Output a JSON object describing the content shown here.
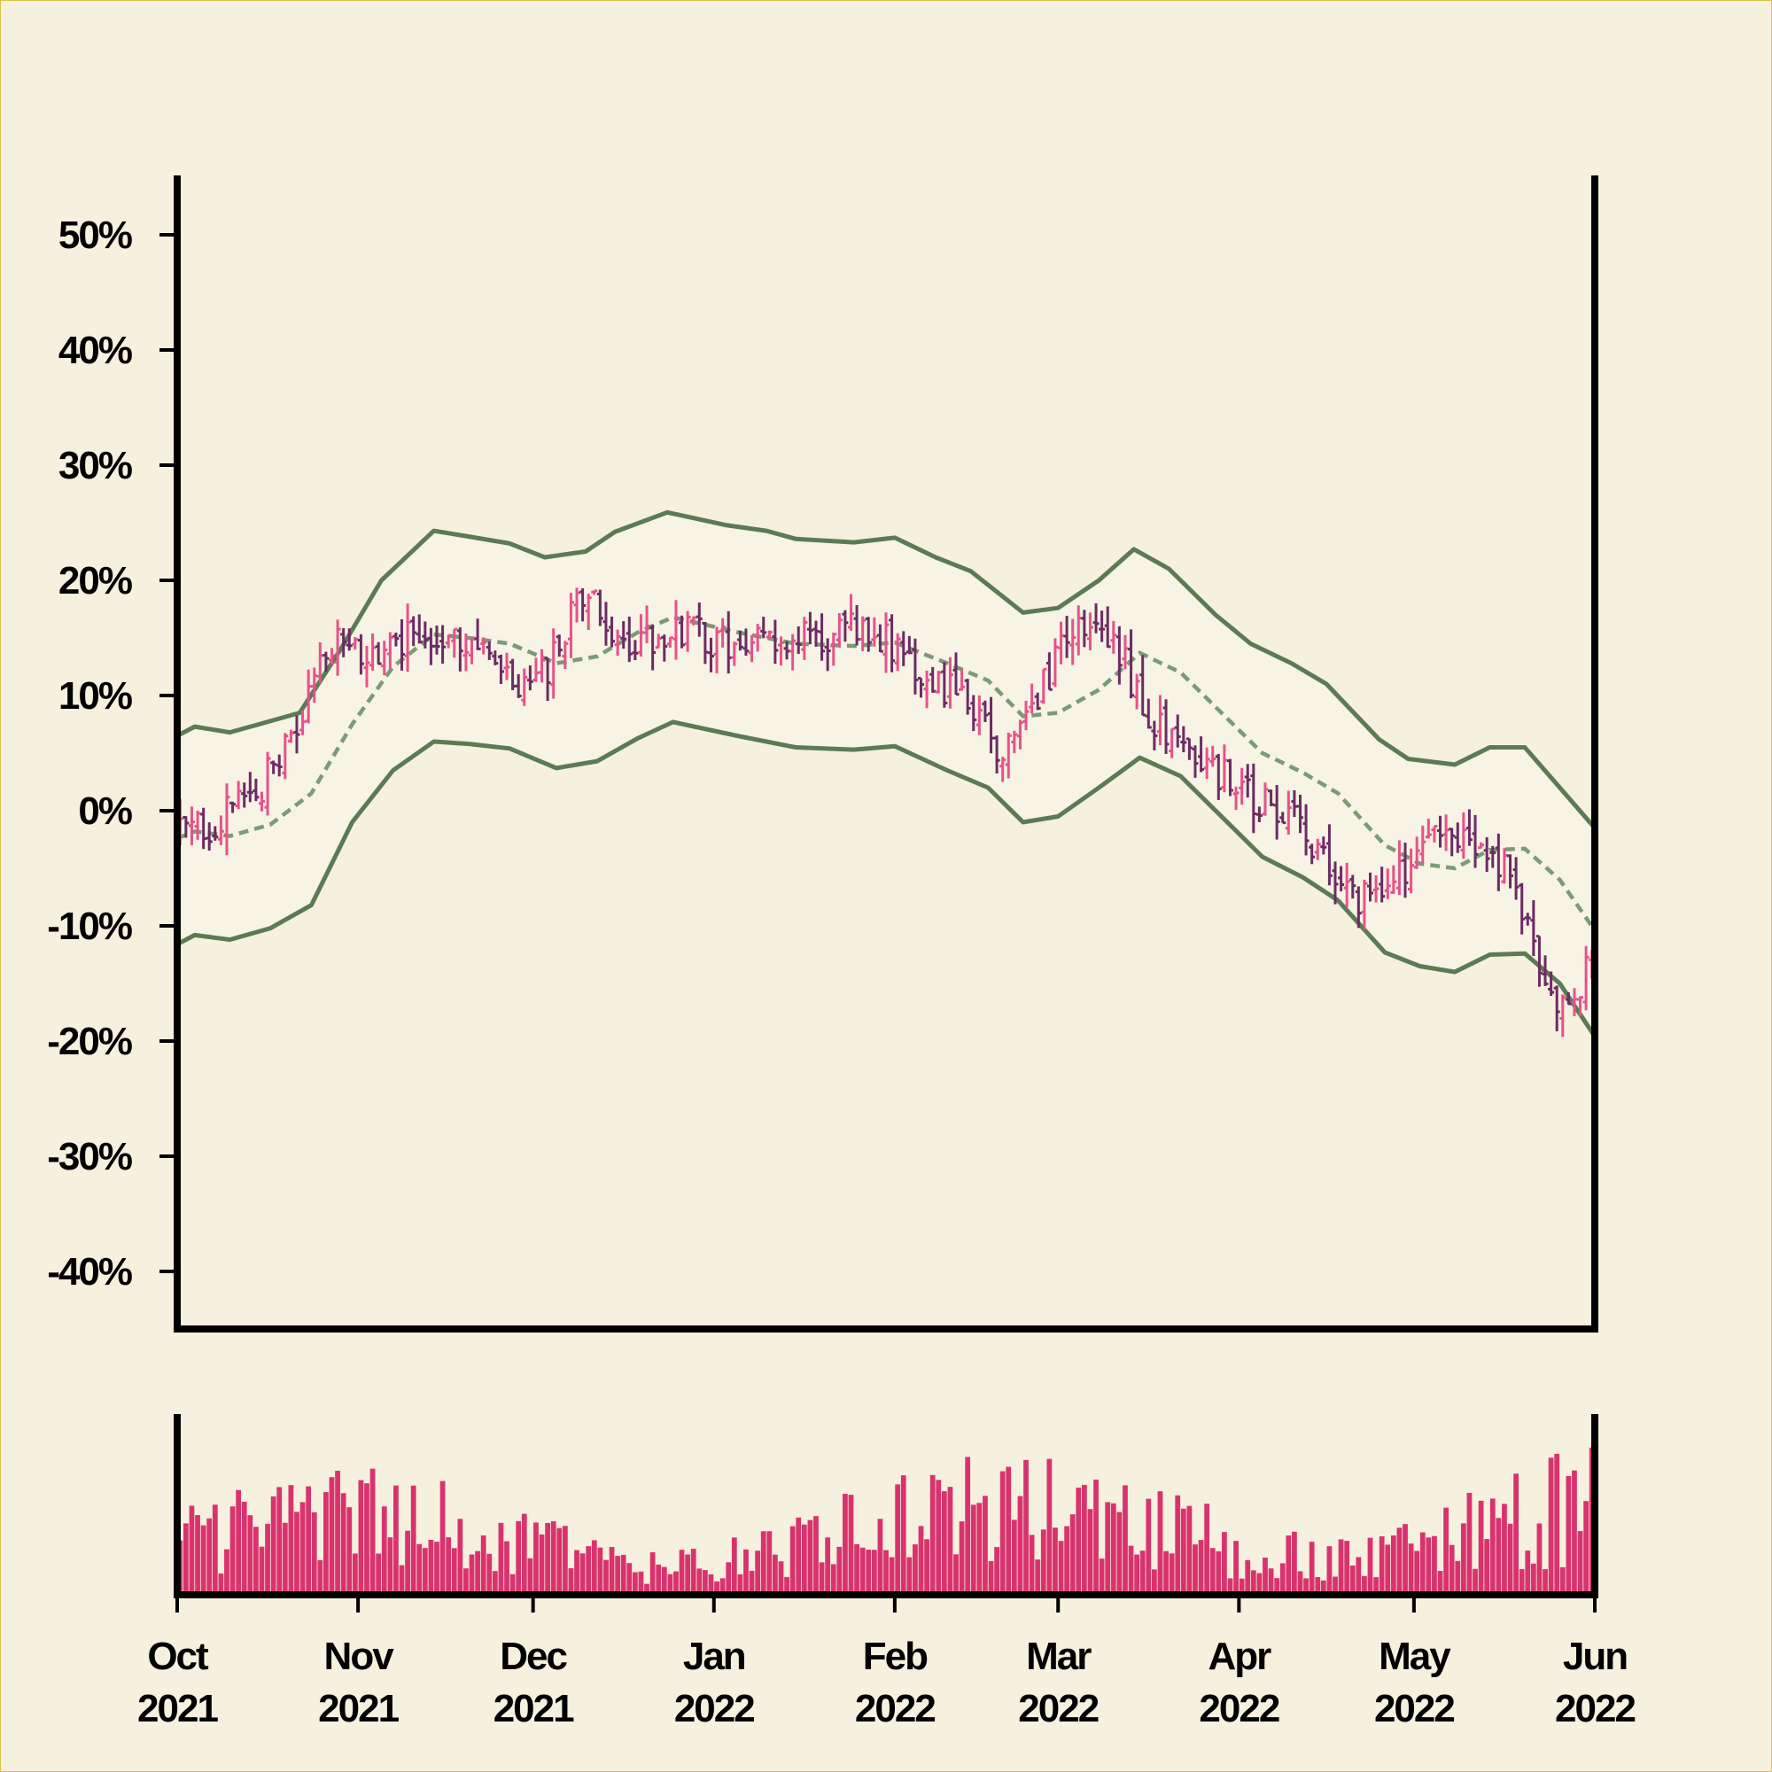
{
  "chart_data": {
    "type": "ohlc",
    "x_range": [
      "2021-10-01",
      "2022-06-01"
    ],
    "y_unit": "%",
    "ylim": [
      -45,
      55
    ],
    "ytick_values": [
      50,
      40,
      30,
      20,
      10,
      0,
      -10,
      -20,
      -30,
      -40
    ],
    "ytick_labels": [
      "50%",
      "40%",
      "30%",
      "20%",
      "10%",
      "0%",
      "-10%",
      "-20%",
      "-30%",
      "-40%"
    ],
    "xticks": [
      {
        "date": "2021-10-01",
        "month": "Oct",
        "year": "2021"
      },
      {
        "date": "2021-11-01",
        "month": "Nov",
        "year": "2021"
      },
      {
        "date": "2021-12-01",
        "month": "Dec",
        "year": "2021"
      },
      {
        "date": "2022-01-01",
        "month": "Jan",
        "year": "2022"
      },
      {
        "date": "2022-02-01",
        "month": "Feb",
        "year": "2022"
      },
      {
        "date": "2022-03-01",
        "month": "Mar",
        "year": "2022"
      },
      {
        "date": "2022-04-01",
        "month": "Apr",
        "year": "2022"
      },
      {
        "date": "2022-05-01",
        "month": "May",
        "year": "2022"
      },
      {
        "date": "2022-06-01",
        "month": "Jun",
        "year": "2022"
      }
    ],
    "close_trend": [
      {
        "date": "2021-10-01",
        "value": -2
      },
      {
        "date": "2021-10-08",
        "value": -1
      },
      {
        "date": "2021-10-15",
        "value": 2
      },
      {
        "date": "2021-10-22",
        "value": 7
      },
      {
        "date": "2021-10-27",
        "value": 15
      },
      {
        "date": "2021-11-03",
        "value": 13
      },
      {
        "date": "2021-11-10",
        "value": 15
      },
      {
        "date": "2021-11-17",
        "value": 16
      },
      {
        "date": "2021-11-25",
        "value": 12
      },
      {
        "date": "2021-12-01",
        "value": 10
      },
      {
        "date": "2021-12-10",
        "value": 19
      },
      {
        "date": "2021-12-16",
        "value": 14
      },
      {
        "date": "2021-12-25",
        "value": 16
      },
      {
        "date": "2022-01-05",
        "value": 14
      },
      {
        "date": "2022-01-12",
        "value": 15
      },
      {
        "date": "2022-01-20",
        "value": 15
      },
      {
        "date": "2022-01-28",
        "value": 16
      },
      {
        "date": "2022-02-05",
        "value": 12
      },
      {
        "date": "2022-02-12",
        "value": 10
      },
      {
        "date": "2022-02-20",
        "value": 5
      },
      {
        "date": "2022-02-28",
        "value": 12
      },
      {
        "date": "2022-03-04",
        "value": 17
      },
      {
        "date": "2022-03-12",
        "value": 13
      },
      {
        "date": "2022-03-18",
        "value": 7
      },
      {
        "date": "2022-03-25",
        "value": 5
      },
      {
        "date": "2022-04-03",
        "value": 1
      },
      {
        "date": "2022-04-10",
        "value": 0
      },
      {
        "date": "2022-04-17",
        "value": -6
      },
      {
        "date": "2022-04-23",
        "value": -8
      },
      {
        "date": "2022-04-30",
        "value": -5
      },
      {
        "date": "2022-05-06",
        "value": -2
      },
      {
        "date": "2022-05-13",
        "value": -4
      },
      {
        "date": "2022-05-18",
        "value": -6
      },
      {
        "date": "2022-05-24",
        "value": -16
      },
      {
        "date": "2022-05-27",
        "value": -18
      },
      {
        "date": "2022-05-31",
        "value": -13
      }
    ],
    "bands": {
      "upper": [
        {
          "date": "2021-10-01",
          "value": 6.5
        },
        {
          "date": "2021-10-04",
          "value": 7.3
        },
        {
          "date": "2021-10-10",
          "value": 6.8
        },
        {
          "date": "2021-10-15",
          "value": 7.5
        },
        {
          "date": "2021-10-22",
          "value": 8.5
        },
        {
          "date": "2021-10-29",
          "value": 14
        },
        {
          "date": "2021-11-05",
          "value": 20
        },
        {
          "date": "2021-11-14",
          "value": 24.3
        },
        {
          "date": "2021-11-20",
          "value": 23.8
        },
        {
          "date": "2021-11-27",
          "value": 23.2
        },
        {
          "date": "2021-12-03",
          "value": 22
        },
        {
          "date": "2021-12-10",
          "value": 22.5
        },
        {
          "date": "2021-12-15",
          "value": 24.2
        },
        {
          "date": "2021-12-24",
          "value": 25.9
        },
        {
          "date": "2022-01-03",
          "value": 24.8
        },
        {
          "date": "2022-01-10",
          "value": 24.3
        },
        {
          "date": "2022-01-15",
          "value": 23.6
        },
        {
          "date": "2022-01-25",
          "value": 23.3
        },
        {
          "date": "2022-02-01",
          "value": 23.7
        },
        {
          "date": "2022-02-08",
          "value": 22
        },
        {
          "date": "2022-02-14",
          "value": 20.8
        },
        {
          "date": "2022-02-23",
          "value": 17.2
        },
        {
          "date": "2022-03-01",
          "value": 17.6
        },
        {
          "date": "2022-03-08",
          "value": 20
        },
        {
          "date": "2022-03-14",
          "value": 22.7
        },
        {
          "date": "2022-03-20",
          "value": 21
        },
        {
          "date": "2022-03-28",
          "value": 17
        },
        {
          "date": "2022-04-03",
          "value": 14.5
        },
        {
          "date": "2022-04-10",
          "value": 12.8
        },
        {
          "date": "2022-04-16",
          "value": 11
        },
        {
          "date": "2022-04-25",
          "value": 6.2
        },
        {
          "date": "2022-04-30",
          "value": 4.5
        },
        {
          "date": "2022-05-08",
          "value": 4
        },
        {
          "date": "2022-05-14",
          "value": 5.5
        },
        {
          "date": "2022-05-20",
          "value": 5.5
        },
        {
          "date": "2022-05-26",
          "value": 2
        },
        {
          "date": "2022-06-01",
          "value": -1.5
        }
      ],
      "middle": [
        {
          "date": "2021-10-01",
          "value": -2.4
        },
        {
          "date": "2021-10-04",
          "value": -1.8
        },
        {
          "date": "2021-10-10",
          "value": -2.2
        },
        {
          "date": "2021-10-17",
          "value": -1.2
        },
        {
          "date": "2021-10-24",
          "value": 1.5
        },
        {
          "date": "2021-10-31",
          "value": 7.5
        },
        {
          "date": "2021-11-07",
          "value": 12.5
        },
        {
          "date": "2021-11-14",
          "value": 15.3
        },
        {
          "date": "2021-11-20",
          "value": 15
        },
        {
          "date": "2021-11-27",
          "value": 14.5
        },
        {
          "date": "2021-12-05",
          "value": 12.8
        },
        {
          "date": "2021-12-12",
          "value": 13.4
        },
        {
          "date": "2021-12-19",
          "value": 15.5
        },
        {
          "date": "2021-12-25",
          "value": 16.8
        },
        {
          "date": "2022-01-05",
          "value": 15.5
        },
        {
          "date": "2022-01-15",
          "value": 14.5
        },
        {
          "date": "2022-01-25",
          "value": 14.3
        },
        {
          "date": "2022-02-01",
          "value": 14.6
        },
        {
          "date": "2022-02-10",
          "value": 12.8
        },
        {
          "date": "2022-02-17",
          "value": 11.3
        },
        {
          "date": "2022-02-23",
          "value": 8.2
        },
        {
          "date": "2022-03-01",
          "value": 8.5
        },
        {
          "date": "2022-03-08",
          "value": 10.5
        },
        {
          "date": "2022-03-15",
          "value": 13.7
        },
        {
          "date": "2022-03-22",
          "value": 12
        },
        {
          "date": "2022-03-30",
          "value": 8
        },
        {
          "date": "2022-04-05",
          "value": 5
        },
        {
          "date": "2022-04-12",
          "value": 3.3
        },
        {
          "date": "2022-04-18",
          "value": 1.5
        },
        {
          "date": "2022-04-26",
          "value": -3
        },
        {
          "date": "2022-05-02",
          "value": -4.6
        },
        {
          "date": "2022-05-08",
          "value": -5
        },
        {
          "date": "2022-05-14",
          "value": -3.4
        },
        {
          "date": "2022-05-20",
          "value": -3.3
        },
        {
          "date": "2022-05-26",
          "value": -6
        },
        {
          "date": "2022-06-01",
          "value": -10.4
        }
      ],
      "lower": [
        {
          "date": "2021-10-01",
          "value": -11.6
        },
        {
          "date": "2021-10-04",
          "value": -10.8
        },
        {
          "date": "2021-10-10",
          "value": -11.2
        },
        {
          "date": "2021-10-17",
          "value": -10.2
        },
        {
          "date": "2021-10-24",
          "value": -8.2
        },
        {
          "date": "2021-10-31",
          "value": -1
        },
        {
          "date": "2021-11-07",
          "value": 3.5
        },
        {
          "date": "2021-11-14",
          "value": 6
        },
        {
          "date": "2021-11-20",
          "value": 5.8
        },
        {
          "date": "2021-11-27",
          "value": 5.4
        },
        {
          "date": "2021-12-05",
          "value": 3.7
        },
        {
          "date": "2021-12-12",
          "value": 4.3
        },
        {
          "date": "2021-12-19",
          "value": 6.3
        },
        {
          "date": "2021-12-25",
          "value": 7.7
        },
        {
          "date": "2022-01-05",
          "value": 6.5
        },
        {
          "date": "2022-01-15",
          "value": 5.5
        },
        {
          "date": "2022-01-25",
          "value": 5.3
        },
        {
          "date": "2022-02-01",
          "value": 5.6
        },
        {
          "date": "2022-02-10",
          "value": 3.5
        },
        {
          "date": "2022-02-17",
          "value": 2
        },
        {
          "date": "2022-02-23",
          "value": -1
        },
        {
          "date": "2022-03-01",
          "value": -0.5
        },
        {
          "date": "2022-03-08",
          "value": 2
        },
        {
          "date": "2022-03-15",
          "value": 4.6
        },
        {
          "date": "2022-03-22",
          "value": 3
        },
        {
          "date": "2022-03-30",
          "value": -1
        },
        {
          "date": "2022-04-05",
          "value": -4
        },
        {
          "date": "2022-04-12",
          "value": -5.8
        },
        {
          "date": "2022-04-18",
          "value": -7.8
        },
        {
          "date": "2022-04-26",
          "value": -12.3
        },
        {
          "date": "2022-05-02",
          "value": -13.5
        },
        {
          "date": "2022-05-08",
          "value": -14
        },
        {
          "date": "2022-05-14",
          "value": -12.5
        },
        {
          "date": "2022-05-20",
          "value": -12.4
        },
        {
          "date": "2022-05-26",
          "value": -15
        },
        {
          "date": "2022-06-01",
          "value": -19.6
        }
      ]
    },
    "grid": false,
    "legend": "none",
    "colors": {
      "up": "#e6538a",
      "down": "#6a2c63",
      "band": "#5c7a56",
      "middle": "#7d9a76",
      "band_fill": "#f7f3e5",
      "volume": "#d9336e",
      "background": "#f6f0df",
      "axis": "#000000"
    }
  }
}
